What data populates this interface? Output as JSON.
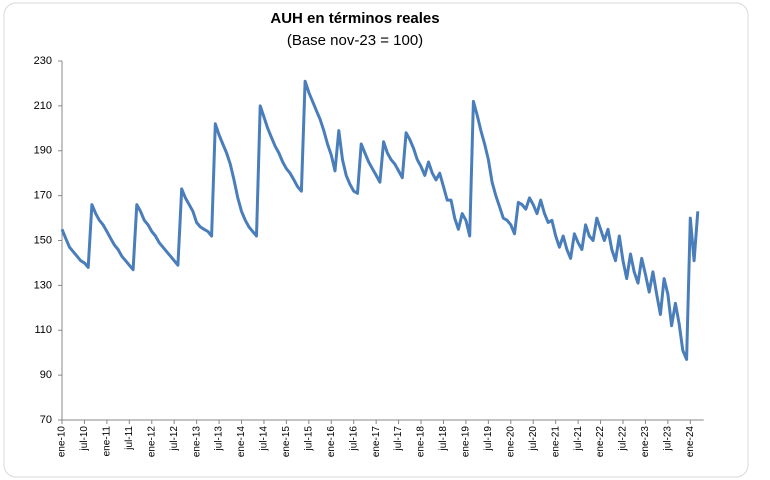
{
  "chart_data": {
    "type": "line",
    "title": "AUH en términos reales",
    "subtitle": "(Base nov-23 = 100)",
    "categories": [
      "ene-10",
      null,
      null,
      null,
      null,
      null,
      "jul-10",
      null,
      null,
      null,
      null,
      null,
      "ene-11",
      null,
      null,
      null,
      null,
      null,
      "jul-11",
      null,
      null,
      null,
      null,
      null,
      "ene-12",
      null,
      null,
      null,
      null,
      null,
      "jul-12",
      null,
      null,
      null,
      null,
      null,
      "ene-13",
      null,
      null,
      null,
      null,
      null,
      "jul-13",
      null,
      null,
      null,
      null,
      null,
      "ene-14",
      null,
      null,
      null,
      null,
      null,
      "jul-14",
      null,
      null,
      null,
      null,
      null,
      "ene-15",
      null,
      null,
      null,
      null,
      null,
      "jul-15",
      null,
      null,
      null,
      null,
      null,
      "ene-16",
      null,
      null,
      null,
      null,
      null,
      "jul-16",
      null,
      null,
      null,
      null,
      null,
      "ene-17",
      null,
      null,
      null,
      null,
      null,
      "jul-17",
      null,
      null,
      null,
      null,
      null,
      "ene-18",
      null,
      null,
      null,
      null,
      null,
      "jul-18",
      null,
      null,
      null,
      null,
      null,
      "ene-19",
      null,
      null,
      null,
      null,
      null,
      "jul-19",
      null,
      null,
      null,
      null,
      null,
      "ene-20",
      null,
      null,
      null,
      null,
      null,
      "jul-20",
      null,
      null,
      null,
      null,
      null,
      "ene-21",
      null,
      null,
      null,
      null,
      null,
      "jul-21",
      null,
      null,
      null,
      null,
      null,
      "ene-22",
      null,
      null,
      null,
      null,
      null,
      "jul-22",
      null,
      null,
      null,
      null,
      null,
      "ene-23",
      null,
      null,
      null,
      null,
      null,
      "jul-23",
      null,
      null,
      null,
      null,
      null,
      "ene-24",
      null,
      null
    ],
    "values": [
      155,
      151,
      147,
      145,
      143,
      141,
      140,
      138,
      166,
      162,
      159,
      157,
      154,
      151,
      148,
      146,
      143,
      141,
      139,
      137,
      166,
      163,
      159,
      157,
      154,
      152,
      149,
      147,
      145,
      143,
      141,
      139,
      173,
      169,
      166,
      163,
      158,
      156,
      155,
      154,
      152,
      202,
      197,
      193,
      189,
      184,
      177,
      169,
      163,
      159,
      156,
      154,
      152,
      210,
      205,
      200,
      196,
      192,
      189,
      185,
      182,
      180,
      177,
      174,
      172,
      221,
      216,
      212,
      208,
      204,
      199,
      193,
      188,
      181,
      199,
      186,
      179,
      175,
      172,
      171,
      193,
      189,
      185,
      182,
      179,
      176,
      194,
      189,
      186,
      184,
      181,
      178,
      198,
      195,
      191,
      186,
      183,
      179,
      185,
      180,
      177,
      180,
      174,
      168,
      168,
      160,
      155,
      162,
      159,
      152,
      212,
      206,
      199,
      193,
      186,
      176,
      170,
      165,
      160,
      159,
      157,
      153,
      167,
      166,
      164,
      169,
      166,
      162,
      168,
      162,
      158,
      159,
      152,
      147,
      152,
      146,
      142,
      153,
      149,
      146,
      157,
      152,
      150,
      160,
      155,
      150,
      155,
      146,
      141,
      152,
      141,
      133,
      144,
      136,
      131,
      142,
      135,
      127,
      136,
      126,
      117,
      133,
      126,
      112,
      122,
      113,
      101,
      97,
      160,
      141,
      163
    ],
    "color": "#4a7ebb",
    "ylim": [
      70,
      230
    ],
    "yticks": [
      70,
      90,
      110,
      130,
      150,
      170,
      190,
      210,
      230
    ]
  }
}
